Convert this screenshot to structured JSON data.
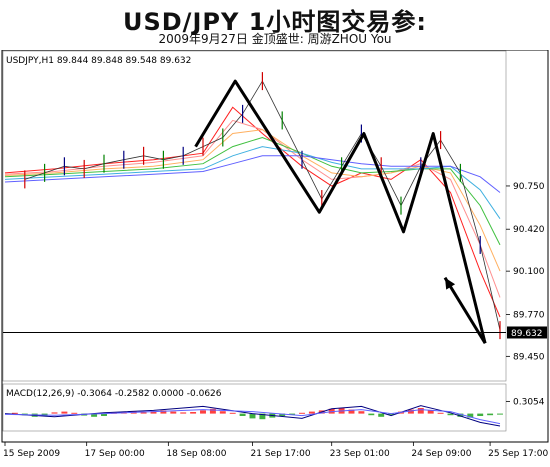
{
  "header": {
    "title": "USD/JPY 1小时图交易参:",
    "subtitle": "2009年9月27日  金顶盛世:  周游ZHOU  You"
  },
  "chart_data": [
    {
      "type": "line",
      "title": "USDJPY,H1  89.844 89.848 89.548 89.632",
      "symbol": "USDJPY,H1",
      "ohlc": {
        "open": 89.844,
        "high": 89.848,
        "low": 89.548,
        "close": 89.632
      },
      "ylim": [
        89.3,
        91.65
      ],
      "yticks": [
        90.75,
        90.42,
        90.1,
        89.77,
        89.45
      ],
      "ytick_labels": [
        "90.750",
        "90.420",
        "90.100",
        "89.770",
        "89.450"
      ],
      "current_price": 89.632,
      "current_price_label": "89.632",
      "xticks": [
        "15 Sep 2009",
        "17 Sep 00:00",
        "18 Sep 08:00",
        "21 Sep 17:00",
        "23 Sep 01:00",
        "24 Sep 09:00",
        "25 Sep 17:00"
      ],
      "x_range": [
        0,
        100
      ],
      "xtick_positions": [
        0,
        16.5,
        33,
        50,
        66,
        82.5,
        98
      ],
      "price_path": {
        "x": [
          4,
          8,
          12,
          16,
          20,
          24,
          28,
          32,
          36,
          40,
          44,
          48,
          52,
          56,
          60,
          64,
          68,
          72,
          76,
          80,
          84,
          88,
          92,
          96,
          100
        ],
        "y": [
          90.8,
          90.85,
          90.9,
          90.88,
          90.92,
          90.95,
          90.98,
          90.95,
          90.98,
          91.05,
          91.12,
          91.3,
          91.55,
          91.25,
          90.95,
          90.65,
          90.9,
          91.15,
          90.9,
          90.6,
          90.9,
          91.1,
          90.85,
          90.3,
          89.65
        ]
      },
      "zigzag": {
        "x": [
          38.5,
          46.5,
          63.5,
          72.5,
          80.5,
          86.5,
          97
        ],
        "y": [
          91.05,
          91.55,
          90.55,
          91.15,
          90.4,
          91.15,
          89.55
        ]
      },
      "arrow": {
        "x": [
          97,
          104
        ],
        "y": [
          89.55,
          90.05
        ]
      },
      "series": [
        {
          "color": "#ff2020",
          "x": [
            0,
            10,
            20,
            30,
            40,
            46,
            52,
            60,
            66,
            72,
            78,
            84,
            90,
            96,
            100
          ],
          "y": [
            90.85,
            90.88,
            90.92,
            90.95,
            91.0,
            91.35,
            91.15,
            90.9,
            90.75,
            90.85,
            90.8,
            90.95,
            90.7,
            90.1,
            89.75
          ]
        },
        {
          "color": "#ff9090",
          "x": [
            0,
            10,
            20,
            30,
            40,
            46,
            52,
            60,
            66,
            72,
            78,
            84,
            90,
            96,
            100
          ],
          "y": [
            90.84,
            90.86,
            90.9,
            90.93,
            90.98,
            91.25,
            91.18,
            90.95,
            90.8,
            90.82,
            90.85,
            90.92,
            90.8,
            90.3,
            89.9
          ]
        },
        {
          "color": "#ffb060",
          "x": [
            0,
            10,
            20,
            30,
            40,
            46,
            52,
            60,
            66,
            72,
            78,
            84,
            90,
            96,
            100
          ],
          "y": [
            90.83,
            90.85,
            90.88,
            90.9,
            90.95,
            91.15,
            91.18,
            90.98,
            90.85,
            90.82,
            90.85,
            90.9,
            90.85,
            90.45,
            90.1
          ]
        },
        {
          "color": "#40c040",
          "x": [
            0,
            10,
            20,
            30,
            40,
            46,
            52,
            60,
            66,
            72,
            78,
            84,
            90,
            96,
            100
          ],
          "y": [
            90.82,
            90.84,
            90.86,
            90.88,
            90.92,
            91.05,
            91.12,
            91.0,
            90.9,
            90.85,
            90.86,
            90.88,
            90.88,
            90.6,
            90.3
          ]
        },
        {
          "color": "#40b0e0",
          "x": [
            0,
            10,
            20,
            30,
            40,
            46,
            52,
            60,
            66,
            72,
            78,
            84,
            90,
            96,
            100
          ],
          "y": [
            90.8,
            90.82,
            90.84,
            90.86,
            90.88,
            90.98,
            91.05,
            91.0,
            90.93,
            90.88,
            90.88,
            90.88,
            90.9,
            90.72,
            90.5
          ]
        },
        {
          "color": "#6060ff",
          "x": [
            0,
            10,
            20,
            30,
            40,
            46,
            52,
            60,
            66,
            72,
            78,
            84,
            90,
            96,
            100
          ],
          "y": [
            90.78,
            90.8,
            90.82,
            90.84,
            90.86,
            90.92,
            90.98,
            90.98,
            90.95,
            90.92,
            90.9,
            90.9,
            90.9,
            90.82,
            90.7
          ]
        }
      ]
    },
    {
      "type": "bar",
      "title": "MACD(12,26,9) -0.3064 -0.2582 0.0000 -0.0626",
      "ylim": [
        -0.36,
        0.34
      ],
      "yticks": [
        0.3054
      ],
      "ytick_labels": [
        "0.3054"
      ],
      "x_range": [
        0,
        100
      ],
      "histogram": {
        "x": [
          2,
          4,
          6,
          8,
          10,
          12,
          14,
          16,
          18,
          20,
          22,
          24,
          26,
          28,
          30,
          32,
          34,
          36,
          38,
          40,
          42,
          44,
          46,
          48,
          50,
          52,
          54,
          56,
          58,
          60,
          62,
          64,
          66,
          68,
          70,
          72,
          74,
          76,
          78,
          80,
          82,
          84,
          86,
          88,
          90,
          92,
          94,
          96,
          98,
          100
        ],
        "values": [
          0.02,
          -0.04,
          -0.08,
          -0.06,
          0.03,
          0.05,
          0.02,
          -0.05,
          -0.08,
          -0.06,
          0.02,
          0.04,
          0.05,
          0.03,
          0.06,
          0.08,
          0.05,
          0.03,
          0.04,
          0.08,
          0.12,
          0.06,
          0.02,
          -0.06,
          -0.12,
          -0.14,
          -0.1,
          -0.06,
          -0.03,
          0.02,
          0.05,
          0.08,
          0.12,
          0.14,
          0.1,
          0.06,
          -0.04,
          -0.08,
          -0.03,
          0.05,
          0.1,
          0.14,
          0.08,
          0.02,
          -0.04,
          -0.08,
          -0.1,
          -0.06,
          -0.04,
          -0.02
        ]
      },
      "signal": {
        "x": [
          0,
          10,
          20,
          30,
          40,
          50,
          60,
          66,
          72,
          78,
          84,
          90,
          96,
          100
        ],
        "y": [
          -0.02,
          -0.04,
          0.0,
          0.05,
          0.1,
          0.05,
          -0.05,
          0.05,
          0.1,
          0.0,
          0.1,
          0.05,
          -0.15,
          -0.25
        ]
      },
      "macd_line": {
        "x": [
          0,
          10,
          20,
          30,
          40,
          50,
          60,
          66,
          72,
          78,
          84,
          90,
          96,
          100
        ],
        "y": [
          0.0,
          -0.08,
          0.02,
          0.08,
          0.18,
          0.0,
          -0.12,
          0.12,
          0.18,
          -0.05,
          0.2,
          0.02,
          -0.22,
          -0.31
        ]
      }
    }
  ]
}
